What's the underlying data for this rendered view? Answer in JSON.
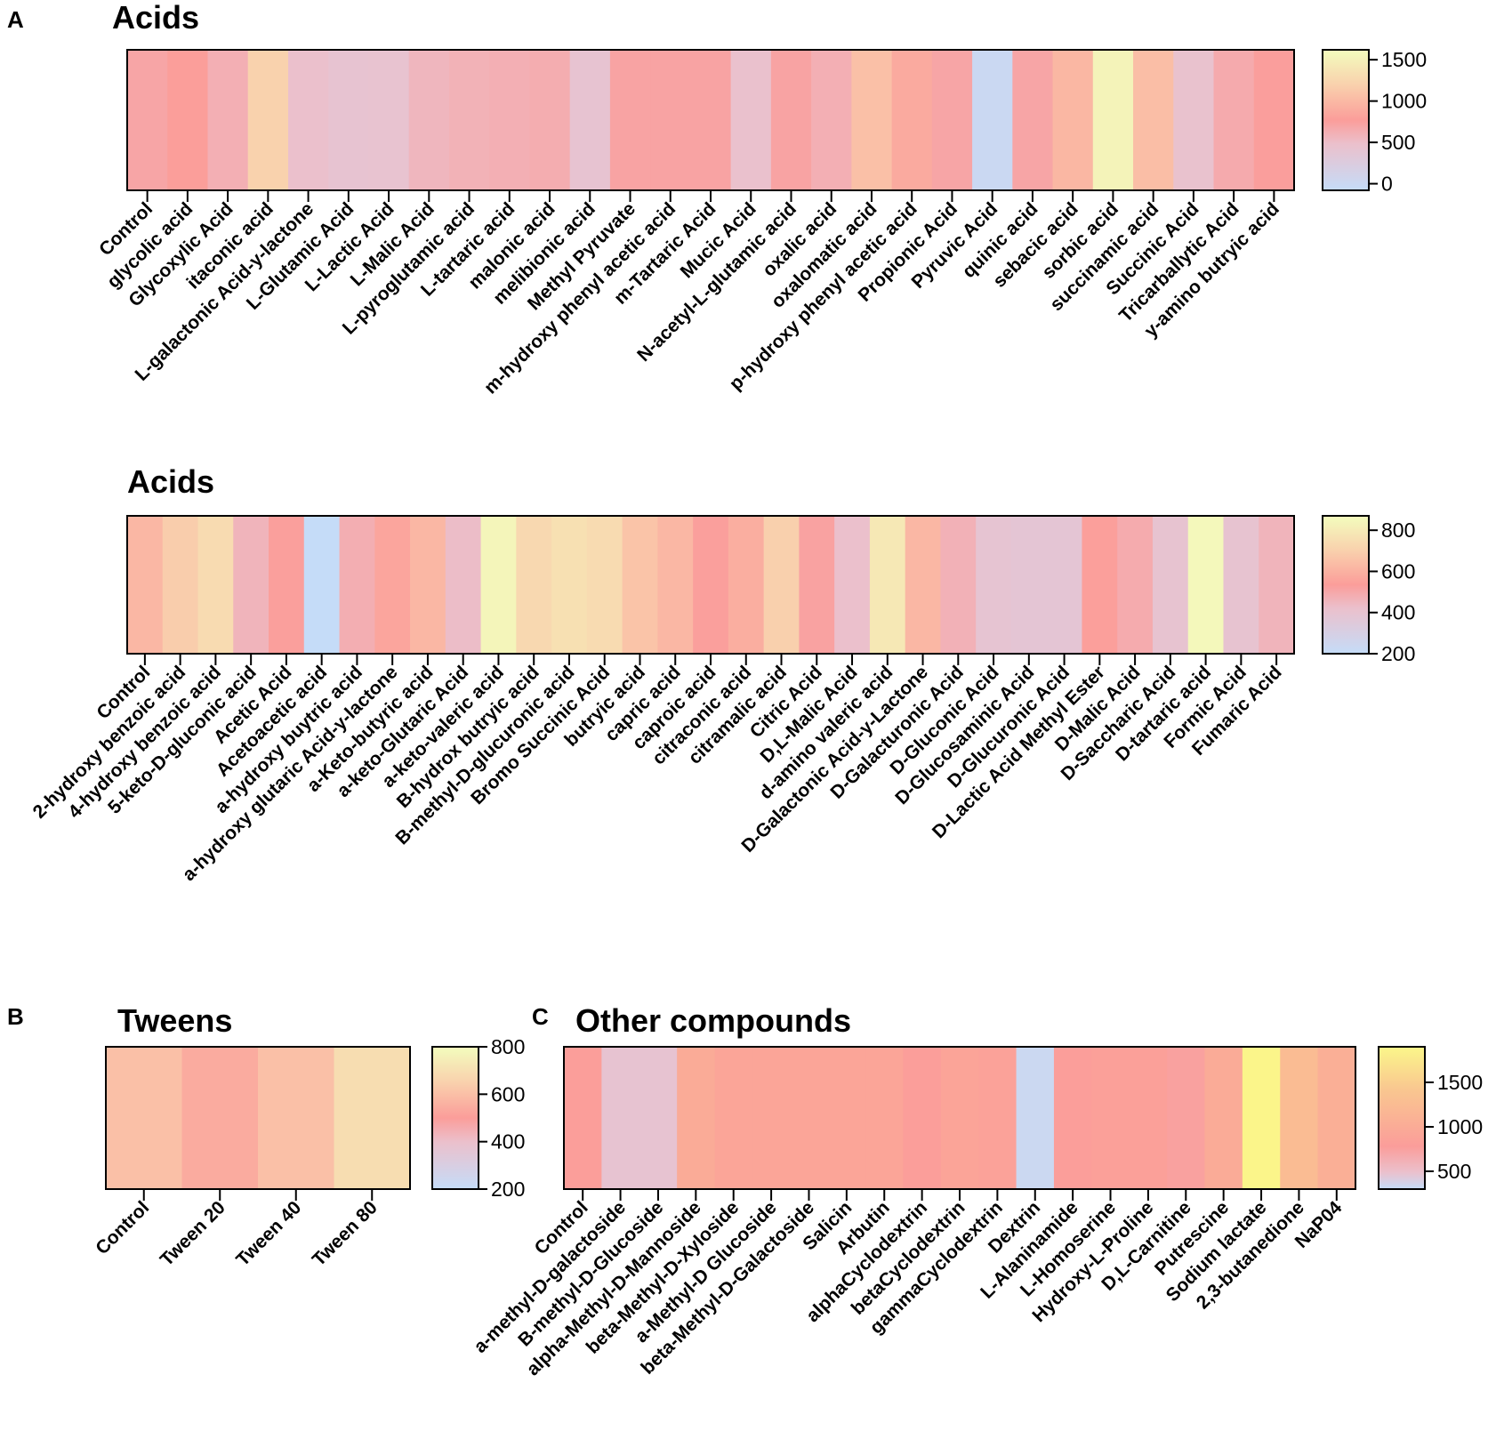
{
  "panel_letters": {
    "A": "A",
    "B": "B",
    "C": "C"
  },
  "chart_data": [
    {
      "id": "A1",
      "type": "heatmap",
      "panel": "A",
      "title": "Acids",
      "colorbar": {
        "min": -80,
        "max": 1620,
        "ticks": [
          0,
          500,
          1000,
          1500
        ]
      },
      "categories": [
        "Control",
        "glycolic acid",
        "Glycoxylic Acid",
        "itaconic acid",
        "L-galactonic Acid-y-lactone",
        "L-Glutamic Acid",
        "L-Lactic Acid",
        "L-Malic Acid",
        "L-pyroglutamic acid",
        "L-tartaric acid",
        "malonic acid",
        "melibionic acid",
        "Methyl Pyruvate",
        "m-hydroxy phenyl acetic acid",
        "m-Tartaric Acid",
        "Mucic Acid",
        "N-acetyl-L-glutamic acid",
        "oxalic acid",
        "oxalomatic acid",
        "p-hydroxy phenyl acetic acid",
        "Propionic Acid",
        "Pyruvic Acid",
        "quinic acid",
        "sebacic acid",
        "sorbic acid",
        "succinamic acid",
        "Succinic Acid",
        "Tricarballytic Acid",
        "y-amino butryic acid"
      ],
      "values": [
        700,
        780,
        620,
        1200,
        480,
        420,
        430,
        560,
        600,
        620,
        640,
        420,
        720,
        720,
        720,
        470,
        720,
        620,
        1060,
        880,
        700,
        0,
        700,
        980,
        1520,
        1040,
        450,
        660,
        760
      ]
    },
    {
      "id": "A2",
      "type": "heatmap",
      "panel": "A",
      "title": "Acids",
      "colorbar": {
        "min": 200,
        "max": 870,
        "ticks": [
          200,
          400,
          600,
          800
        ]
      },
      "categories": [
        "Control",
        "2-hydroxy benzoic acid",
        "4-hydroxy benzoic acid",
        "5-keto-D-gluconic acid",
        "Acetic Acid",
        "Acetoacetic acid",
        "a-hydroxy buytric acid",
        "a-hydroxy glutaric Acid-y-lactone",
        "a-Keto-butyric acid",
        "a-keto-Glutaric Acid",
        "a-keto-valeric acid",
        "B-hydrox butryic acid",
        "B-methyl-D-glucuronic acid",
        "Bromo Succinic Acid",
        "butryic acid",
        "capric acid",
        "caproic acid",
        "citraconic acid",
        "citramalic acid",
        "Citric Acid",
        "D,L-Malic Acid",
        "d-amino valeric acid",
        "D-Galactonic Acid-y-Lactone",
        "D-Galacturonic Acid",
        "D-Gluconic Acid",
        "D-Glucosaminic Acid",
        "D-Glucuronic Acid",
        "D-Lactic Acid Methyl Ester",
        "D-Malic Acid",
        "D-Saccharic Acid",
        "D-tartaric acid",
        "Formic Acid",
        "Fumaric Acid"
      ],
      "values": [
        620,
        690,
        740,
        460,
        530,
        200,
        480,
        560,
        620,
        430,
        840,
        730,
        760,
        740,
        660,
        620,
        530,
        590,
        700,
        520,
        420,
        790,
        620,
        470,
        390,
        380,
        380,
        540,
        490,
        400,
        850,
        400,
        460
      ]
    },
    {
      "id": "B",
      "type": "heatmap",
      "panel": "B",
      "title": "Tweens",
      "colorbar": {
        "min": 200,
        "max": 800,
        "ticks": [
          200,
          400,
          600,
          800
        ]
      },
      "categories": [
        "Control",
        "Tween 20",
        "Tween 40",
        "Tween 80"
      ],
      "values": [
        600,
        540,
        600,
        690
      ]
    },
    {
      "id": "C",
      "type": "heatmap",
      "panel": "C",
      "title": "Other compounds",
      "colorbar": {
        "min": 300,
        "max": 1900,
        "ticks": [
          500,
          1000,
          1500
        ]
      },
      "categories": [
        "Control",
        "a-methyl-D-galactoside",
        "B-methyl-D-Glucoside",
        "alpha-Methyl-D-Mannoside",
        "beta-Methyl-D-Xyloside",
        "a-Methyl-D Glucoside",
        "beta-Methyl-D-Galactoside",
        "Salicin",
        "Arbutin",
        "alphaCyclodextrin",
        "betaCyclodextrin",
        "gammaCyclodextrin",
        "Dextrin",
        "L-Alaninamide",
        "L-Homoserine",
        "Hydroxy-L-Proline",
        "D,L-Carnitine",
        "Putrescine",
        "Sodium lactate",
        "2,3-butanedione",
        "NaP04"
      ],
      "values": [
        800,
        470,
        470,
        1000,
        900,
        900,
        900,
        900,
        900,
        800,
        880,
        860,
        330,
        800,
        820,
        830,
        750,
        1000,
        1880,
        1250,
        1050
      ]
    }
  ]
}
